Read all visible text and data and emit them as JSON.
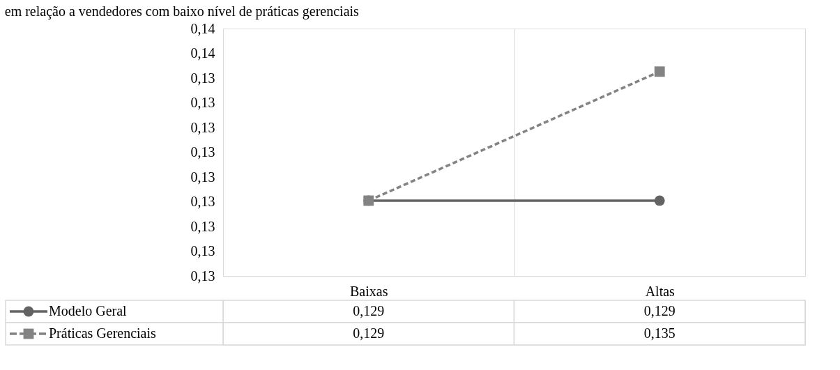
{
  "chart_data": {
    "type": "line",
    "title": "em relação a vendedores com baixo nível de práticas gerenciais",
    "categories": [
      "Baixas",
      "Altas"
    ],
    "series": [
      {
        "name": "Modelo Geral",
        "color": "#636363",
        "values": [
          0.129,
          0.129
        ],
        "value_labels": [
          "0,129",
          "0,129"
        ],
        "marker": "circle",
        "line_style": "solid"
      },
      {
        "name": "Práticas Gerenciais",
        "color": "#838383",
        "values": [
          0.129,
          0.135
        ],
        "value_labels": [
          "0,129",
          "0,135"
        ],
        "marker": "square",
        "line_style": "dashed"
      }
    ],
    "ylim": [
      0.1255,
      0.137
    ],
    "yticks": [
      {
        "value": 0.1255,
        "label": "0,13"
      },
      {
        "value": 0.12665,
        "label": "0,13"
      },
      {
        "value": 0.1278,
        "label": "0,13"
      },
      {
        "value": 0.12895,
        "label": "0,13"
      },
      {
        "value": 0.1301,
        "label": "0,13"
      },
      {
        "value": 0.13125,
        "label": "0,13"
      },
      {
        "value": 0.1324,
        "label": "0,13"
      },
      {
        "value": 0.13355,
        "label": "0,13"
      },
      {
        "value": 0.1347,
        "label": "0,13"
      },
      {
        "value": 0.13585,
        "label": "0,14"
      },
      {
        "value": 0.137,
        "label": "0,14"
      }
    ],
    "grid": "x",
    "legend": "bottom"
  }
}
